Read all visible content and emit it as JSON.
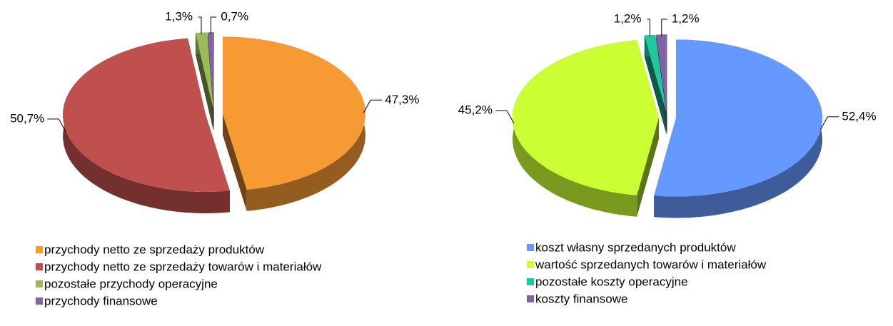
{
  "chart_data": [
    {
      "type": "pie",
      "categories": [
        "przychody netto ze sprzedaży produktów",
        "przychody netto ze sprzedaży towarów i materiałów",
        "pozostałe przychody operacyjne",
        "przychody finansowe"
      ],
      "values": [
        47.3,
        50.7,
        1.3,
        0.7
      ],
      "value_labels": [
        "47,3%",
        "50,7%",
        "1,3%",
        "0,7%"
      ],
      "colors": [
        "#f79a33",
        "#c0504d",
        "#9bbb59",
        "#8064a2"
      ]
    },
    {
      "type": "pie",
      "categories": [
        "koszt własny sprzedanych produktów",
        "wartość sprzedanych towarów i materiałów",
        "pozostałe koszty operacyjne",
        "koszty finansowe"
      ],
      "values": [
        52.4,
        45.2,
        1.2,
        1.2
      ],
      "value_labels": [
        "52,4%",
        "45,2%",
        "1,2%",
        "1,2%"
      ],
      "colors": [
        "#6699ff",
        "#ccff33",
        "#1fc8a0",
        "#8064a2"
      ]
    }
  ]
}
